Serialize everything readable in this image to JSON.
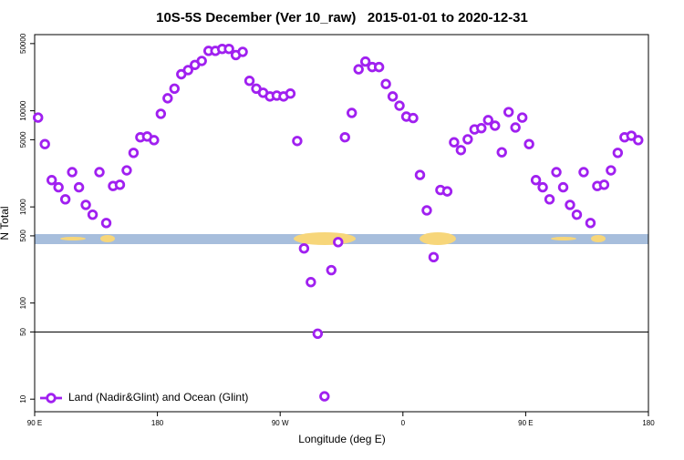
{
  "chart_data": {
    "type": "scatter",
    "title": "10S-5S December (Ver 10_raw)   2015-01-01 to 2020-12-31",
    "xlabel": "Longitude (deg E)",
    "ylabel": "N Total",
    "log_y": true,
    "legend": "bottom left",
    "hline": 50,
    "xlim": [
      90,
      540
    ],
    "xticks": [
      {
        "value": 90,
        "label": "90 E"
      },
      180,
      {
        "value": 270,
        "label": "90 W"
      },
      {
        "value": 360,
        "label": "0"
      },
      {
        "value": 450,
        "label": "90 E"
      },
      {
        "value": 540,
        "label": "180"
      }
    ],
    "ylim": [
      7.4,
      62000
    ],
    "yticks": [
      10,
      50,
      100,
      500,
      1000,
      5000,
      10000,
      50000
    ],
    "x": [
      92.5,
      97.5,
      102.5,
      107.5,
      112.5,
      117.5,
      122.5,
      127.5,
      132.5,
      137.5,
      142.5,
      147.5,
      152.5,
      157.5,
      162.5,
      167.5,
      172.5,
      177.5,
      182.5,
      187.5,
      192.5,
      197.5,
      202.5,
      207.5,
      212.5,
      217.5,
      222.5,
      227.5,
      232.5,
      237.5,
      242.5,
      247.5,
      252.5,
      257.5,
      262.5,
      267.5,
      272.5,
      277.5,
      282.5,
      287.5,
      292.5,
      297.5,
      302.5,
      307.5,
      312.5,
      317.5,
      322.5,
      327.5,
      332.5,
      337.5,
      342.5,
      347.5,
      352.5,
      357.5,
      362.5,
      367.5,
      372.5,
      377.5,
      382.5,
      387.5,
      392.5,
      397.5,
      402.5,
      407.5,
      412.5,
      417.5,
      422.5,
      427.5,
      432.5,
      437.5,
      442.5,
      447.5,
      452.5,
      457.5,
      462.5,
      467.5,
      472.5,
      477.5,
      482.5,
      487.5,
      492.5,
      497.5,
      502.5,
      507.5,
      512.5,
      517.5,
      522.5,
      527.5,
      532.5
    ],
    "series": [
      {
        "name": "Land (Nadir&Glint) and Ocean (Glint)",
        "color": "#a020f0",
        "values": [
          8500,
          4500,
          1900,
          1600,
          1200,
          2300,
          1600,
          1050,
          830,
          2300,
          680,
          1650,
          1700,
          2400,
          3650,
          5300,
          5400,
          4950,
          9300,
          13500,
          17000,
          24000,
          26500,
          30000,
          33000,
          42000,
          42000,
          44000,
          44000,
          38000,
          41000,
          20500,
          17000,
          15400,
          14100,
          14400,
          14100,
          15100,
          4850,
          370,
          165,
          48,
          10.7,
          220,
          430,
          5300,
          9500,
          27000,
          32500,
          28500,
          28500,
          19000,
          14100,
          11300,
          8700,
          8400,
          2150,
          920,
          300,
          1500,
          1450,
          4700,
          3900,
          5050,
          6400,
          6600,
          8000,
          7000,
          3700,
          9700,
          6700,
          8500,
          4500,
          1900,
          1600,
          1200,
          2300,
          1600,
          1050,
          830,
          2300,
          680,
          1650,
          1700,
          2400,
          3650,
          5300,
          5500,
          4950
        ]
      }
    ]
  }
}
